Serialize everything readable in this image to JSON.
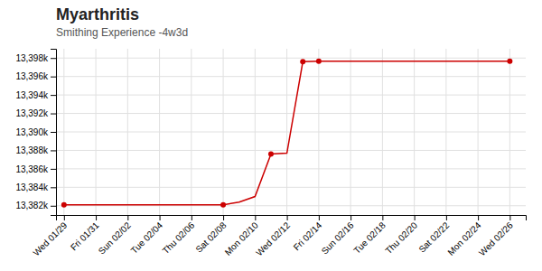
{
  "chart_data": {
    "type": "line",
    "title": "Myarthritis",
    "subtitle": "Smithing Experience -4w3d",
    "grid": true,
    "xlim": [
      -0.5,
      29
    ],
    "xticks": [
      {
        "value": 0,
        "label": "Wed 01/29"
      },
      {
        "value": 2,
        "label": "Fri 01/31"
      },
      {
        "value": 4,
        "label": "Sun 02/02"
      },
      {
        "value": 6,
        "label": "Tue 02/04"
      },
      {
        "value": 8,
        "label": "Thu 02/06"
      },
      {
        "value": 10,
        "label": "Sat 02/08"
      },
      {
        "value": 12,
        "label": "Mon 02/10"
      },
      {
        "value": 14,
        "label": "Wed 02/12"
      },
      {
        "value": 16,
        "label": "Fri 02/14"
      },
      {
        "value": 18,
        "label": "Sun 02/16"
      },
      {
        "value": 20,
        "label": "Tue 02/18"
      },
      {
        "value": 22,
        "label": "Thu 02/20"
      },
      {
        "value": 24,
        "label": "Sat 02/22"
      },
      {
        "value": 26,
        "label": "Mon 02/24"
      },
      {
        "value": 28,
        "label": "Wed 02/26"
      }
    ],
    "ylim": [
      13381000,
      13399000
    ],
    "yticks": [
      {
        "value": 13382000,
        "label": "13,382k"
      },
      {
        "value": 13384000,
        "label": "13,384k"
      },
      {
        "value": 13386000,
        "label": "13,386k"
      },
      {
        "value": 13388000,
        "label": "13,388k"
      },
      {
        "value": 13390000,
        "label": "13,390k"
      },
      {
        "value": 13392000,
        "label": "13,392k"
      },
      {
        "value": 13394000,
        "label": "13,394k"
      },
      {
        "value": 13396000,
        "label": "13,396k"
      },
      {
        "value": 13398000,
        "label": "13,398k"
      }
    ],
    "series": [
      {
        "type": "line",
        "color": "#cc0000",
        "x": [
          0,
          10,
          11,
          12,
          13,
          14,
          15,
          16,
          18,
          20,
          22,
          24,
          26,
          28
        ],
        "values": [
          13382100,
          13382100,
          13382400,
          13383000,
          13387600,
          13387700,
          13397600,
          13397650,
          13397650,
          13397650,
          13397650,
          13397650,
          13397650,
          13397650
        ]
      },
      {
        "type": "scatter",
        "color": "#cc0000",
        "x": [
          0,
          10,
          13,
          15,
          16,
          28
        ],
        "values": [
          13382100,
          13382100,
          13387600,
          13397600,
          13397650,
          13397650
        ]
      }
    ]
  }
}
